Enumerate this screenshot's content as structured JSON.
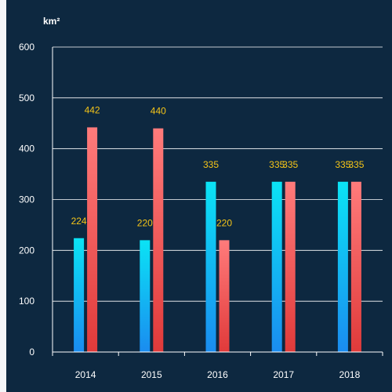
{
  "chart_data": {
    "type": "bar",
    "unit": "km²",
    "categories": [
      "2014",
      "2015",
      "2016",
      "2017",
      "2018"
    ],
    "series": [
      {
        "values": [
          224,
          220,
          335,
          335,
          335
        ],
        "color_top": "#0be3f5",
        "color_bottom": "#1a8cf0"
      },
      {
        "values": [
          442,
          440,
          220,
          335,
          335
        ],
        "color_top": "#ff7b7b",
        "color_bottom": "#e03a3a"
      }
    ],
    "ylim": [
      0,
      600
    ],
    "yticks": [
      0,
      100,
      200,
      300,
      400,
      500,
      600
    ],
    "grid": true,
    "data_labels": true,
    "label_color": "#f5c518",
    "axis_color": "#ffffff",
    "background": "#0d2840"
  }
}
